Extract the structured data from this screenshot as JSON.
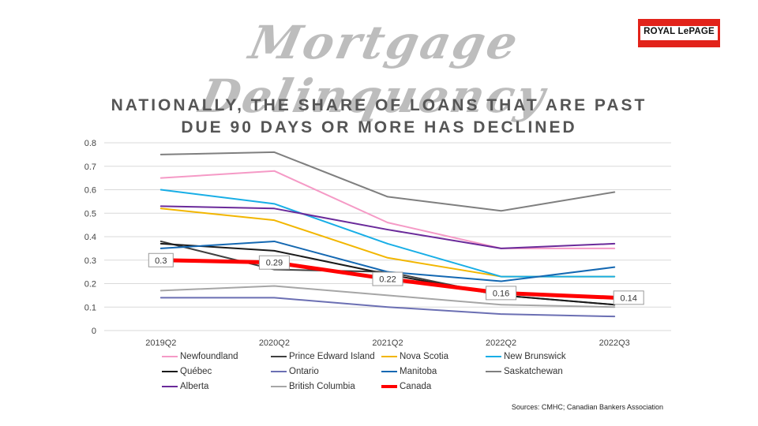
{
  "header": {
    "script_title": "Mortgage Delinquency",
    "subtitle_line1": "NATIONALLY, THE SHARE OF LOANS THAT ARE PAST",
    "subtitle_line2": "DUE 90 DAYS OR MORE HAS DECLINED",
    "logo_text": "ROYAL LePAGE"
  },
  "source": "Sources: CMHC; Canadian Bankers Association",
  "chart_data": {
    "type": "line",
    "title": "",
    "xlabel": "",
    "ylabel": "",
    "categories": [
      "2019Q2",
      "2020Q2",
      "2021Q2",
      "2022Q2",
      "2022Q3"
    ],
    "ylim": [
      0,
      0.8
    ],
    "yticks": [
      "0",
      "0.1",
      "0.2",
      "0.3",
      "0.4",
      "0.5",
      "0.6",
      "0.7",
      "0.8"
    ],
    "grid": true,
    "legend_position": "bottom",
    "series": [
      {
        "name": "Newfoundland",
        "color": "#f59ac6",
        "values": [
          0.65,
          0.68,
          0.46,
          0.35,
          0.35
        ]
      },
      {
        "name": "Prince Edward Island",
        "color": "#404040",
        "values": [
          0.38,
          0.26,
          0.25,
          0.15,
          0.11
        ]
      },
      {
        "name": "Nova Scotia",
        "color": "#f2b600",
        "values": [
          0.52,
          0.47,
          0.31,
          0.23,
          0.23
        ]
      },
      {
        "name": "New Brunswick",
        "color": "#18aee6",
        "values": [
          0.6,
          0.54,
          0.37,
          0.23,
          0.23
        ]
      },
      {
        "name": "Québec",
        "color": "#1a1a1a",
        "values": [
          0.37,
          0.34,
          0.24,
          0.15,
          0.11
        ]
      },
      {
        "name": "Ontario",
        "color": "#6b6fb3",
        "values": [
          0.14,
          0.14,
          0.1,
          0.07,
          0.06
        ]
      },
      {
        "name": "Manitoba",
        "color": "#1468b2",
        "values": [
          0.35,
          0.38,
          0.25,
          0.21,
          0.27
        ]
      },
      {
        "name": "Saskatchewan",
        "color": "#7f7f7f",
        "values": [
          0.75,
          0.76,
          0.57,
          0.51,
          0.59
        ]
      },
      {
        "name": "Alberta",
        "color": "#6a2a9a",
        "values": [
          0.53,
          0.52,
          0.43,
          0.35,
          0.37
        ]
      },
      {
        "name": "British Columbia",
        "color": "#a6a6a6",
        "values": [
          0.17,
          0.19,
          0.15,
          0.11,
          0.1
        ]
      },
      {
        "name": "Canada",
        "color": "#ff0000",
        "values": [
          0.3,
          0.29,
          0.22,
          0.16,
          0.14
        ],
        "data_labels": [
          "0.3",
          "0.29",
          "0.22",
          "0.16",
          "0.14"
        ],
        "bold": true
      }
    ]
  }
}
